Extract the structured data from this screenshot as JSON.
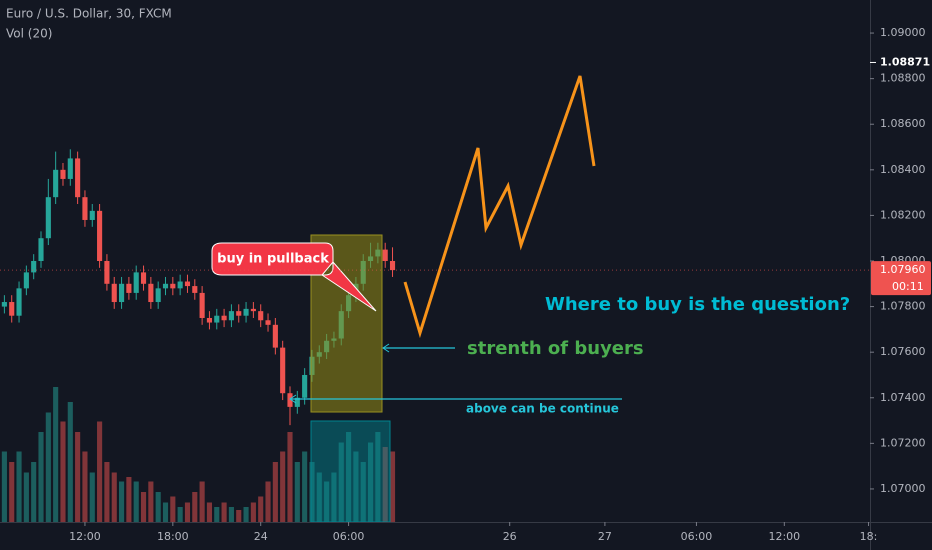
{
  "chart_data": {
    "type": "candlestick",
    "title": "Euro / U.S. Dollar, 30, FXCM",
    "subtitle": "Vol (20)",
    "up_color": "#26a69a",
    "down_color": "#ef5350",
    "grid": false,
    "ylim": [
      1.06855,
      1.09145
    ],
    "yticks": [
      {
        "value": 1.07,
        "label": "1.07000"
      },
      {
        "value": 1.072,
        "label": "1.07200"
      },
      {
        "value": 1.074,
        "label": "1.07400"
      },
      {
        "value": 1.076,
        "label": "1.07600"
      },
      {
        "value": 1.078,
        "label": "1.07800"
      },
      {
        "value": 1.08,
        "label": "1.08000"
      },
      {
        "value": 1.082,
        "label": "1.08200"
      },
      {
        "value": 1.084,
        "label": "1.08400"
      },
      {
        "value": 1.086,
        "label": "1.08600"
      },
      {
        "value": 1.088,
        "label": "1.08800"
      },
      {
        "value": 1.09,
        "label": "1.09000"
      }
    ],
    "xlim": [
      -11.6,
      107.2
    ],
    "xticks": [
      {
        "value": 0,
        "label": "12:00"
      },
      {
        "value": 12,
        "label": "18:00"
      },
      {
        "value": 24,
        "label": "24"
      },
      {
        "value": 36,
        "label": "06:00"
      },
      {
        "value": 58,
        "label": "26"
      },
      {
        "value": 71,
        "label": "27"
      },
      {
        "value": 83.5,
        "label": "06:00"
      },
      {
        "value": 95.5,
        "label": "12:00"
      },
      {
        "value": 107,
        "label": "18:"
      }
    ],
    "high_price": {
      "value": 1.08871,
      "label": "1.08871"
    },
    "last_price": {
      "value": 1.0796,
      "label": "1.07960"
    },
    "countdown": "00:11",
    "x": [
      -11,
      -10,
      -9,
      -8,
      -7,
      -6,
      -5,
      -4,
      -3,
      -2,
      -1,
      0,
      1,
      2,
      3,
      4,
      5,
      6,
      7,
      8,
      9,
      10,
      11,
      12,
      13,
      14,
      15,
      16,
      17,
      18,
      19,
      20,
      21,
      22,
      23,
      24,
      25,
      26,
      27,
      28,
      29,
      30,
      31,
      32,
      33,
      34,
      35,
      36,
      37,
      38,
      39,
      40,
      41,
      42
    ],
    "candles": [
      [
        1.078,
        1.0785,
        1.0777,
        1.0782
      ],
      [
        1.0782,
        1.0785,
        1.0773,
        1.0776
      ],
      [
        1.0776,
        1.0791,
        1.0773,
        1.0788
      ],
      [
        1.0788,
        1.0798,
        1.0785,
        1.0795
      ],
      [
        1.0795,
        1.0803,
        1.0792,
        1.08
      ],
      [
        1.08,
        1.0813,
        1.0797,
        1.081
      ],
      [
        1.081,
        1.0836,
        1.0807,
        1.0828
      ],
      [
        1.0828,
        1.0848,
        1.0825,
        1.084
      ],
      [
        1.084,
        1.0843,
        1.0833,
        1.0836
      ],
      [
        1.0836,
        1.0849,
        1.0833,
        1.0845
      ],
      [
        1.0845,
        1.0848,
        1.0825,
        1.0828
      ],
      [
        1.0828,
        1.0831,
        1.0815,
        1.0818
      ],
      [
        1.0818,
        1.0825,
        1.0815,
        1.0822
      ],
      [
        1.0822,
        1.0825,
        1.0797,
        1.08
      ],
      [
        1.08,
        1.0803,
        1.0787,
        1.079
      ],
      [
        1.079,
        1.0793,
        1.0779,
        1.0782
      ],
      [
        1.0782,
        1.0793,
        1.0779,
        1.079
      ],
      [
        1.079,
        1.0793,
        1.0783,
        1.0786
      ],
      [
        1.0786,
        1.0798,
        1.0783,
        1.0795
      ],
      [
        1.0795,
        1.0798,
        1.0787,
        1.079
      ],
      [
        1.079,
        1.0793,
        1.0779,
        1.0782
      ],
      [
        1.0782,
        1.0791,
        1.0779,
        1.0788
      ],
      [
        1.0788,
        1.0793,
        1.0785,
        1.079
      ],
      [
        1.079,
        1.0793,
        1.0785,
        1.0788
      ],
      [
        1.0788,
        1.0794,
        1.0785,
        1.0791
      ],
      [
        1.0791,
        1.0794,
        1.0786,
        1.0789
      ],
      [
        1.0789,
        1.0792,
        1.0783,
        1.0786
      ],
      [
        1.0786,
        1.0789,
        1.0772,
        1.0775
      ],
      [
        1.0775,
        1.0778,
        1.077,
        1.0773
      ],
      [
        1.0773,
        1.0779,
        1.077,
        1.0776
      ],
      [
        1.0776,
        1.0779,
        1.0771,
        1.0774
      ],
      [
        1.0774,
        1.0781,
        1.0771,
        1.0778
      ],
      [
        1.0778,
        1.0781,
        1.0773,
        1.0776
      ],
      [
        1.0776,
        1.0782,
        1.0773,
        1.0779
      ],
      [
        1.0779,
        1.0782,
        1.0775,
        1.0778
      ],
      [
        1.0778,
        1.0781,
        1.0771,
        1.0774
      ],
      [
        1.0774,
        1.0777,
        1.0769,
        1.0772
      ],
      [
        1.0772,
        1.0775,
        1.0759,
        1.0762
      ],
      [
        1.0762,
        1.0765,
        1.0739,
        1.0742
      ],
      [
        1.0742,
        1.0745,
        1.0728,
        1.0736
      ],
      [
        1.0736,
        1.0743,
        1.0733,
        1.074
      ],
      [
        1.074,
        1.0753,
        1.0737,
        1.075
      ],
      [
        1.075,
        1.0761,
        1.0747,
        1.0758
      ],
      [
        1.0758,
        1.0763,
        1.0755,
        1.076
      ],
      [
        1.076,
        1.0768,
        1.0757,
        1.0765
      ],
      [
        1.0765,
        1.0769,
        1.0762,
        1.0766
      ],
      [
        1.0766,
        1.0781,
        1.0763,
        1.0778
      ],
      [
        1.0778,
        1.0788,
        1.0775,
        1.0785
      ],
      [
        1.0785,
        1.0793,
        1.0782,
        1.079
      ],
      [
        1.079,
        1.0803,
        1.0787,
        1.08
      ],
      [
        1.08,
        1.0808,
        1.0797,
        1.0802
      ],
      [
        1.0802,
        1.0808,
        1.0799,
        1.0805
      ],
      [
        1.0805,
        1.0808,
        1.0797,
        1.08
      ],
      [
        1.08,
        1.0806,
        1.0793,
        1.0796
      ]
    ],
    "volume_ylim": [
      0,
      100
    ],
    "volume": [
      47,
      40,
      47,
      33,
      40,
      60,
      73,
      90,
      67,
      80,
      60,
      47,
      33,
      67,
      40,
      33,
      27,
      30,
      27,
      20,
      27,
      20,
      13,
      17,
      10,
      13,
      20,
      27,
      13,
      10,
      13,
      10,
      8,
      10,
      13,
      17,
      27,
      40,
      47,
      60,
      40,
      47,
      40,
      33,
      27,
      33,
      53,
      60,
      47,
      40,
      53,
      60,
      50,
      47
    ],
    "annotations": [
      "buy in pullback",
      "Where to buy is the question?",
      "strenth of buyers",
      "above can be continue"
    ]
  }
}
